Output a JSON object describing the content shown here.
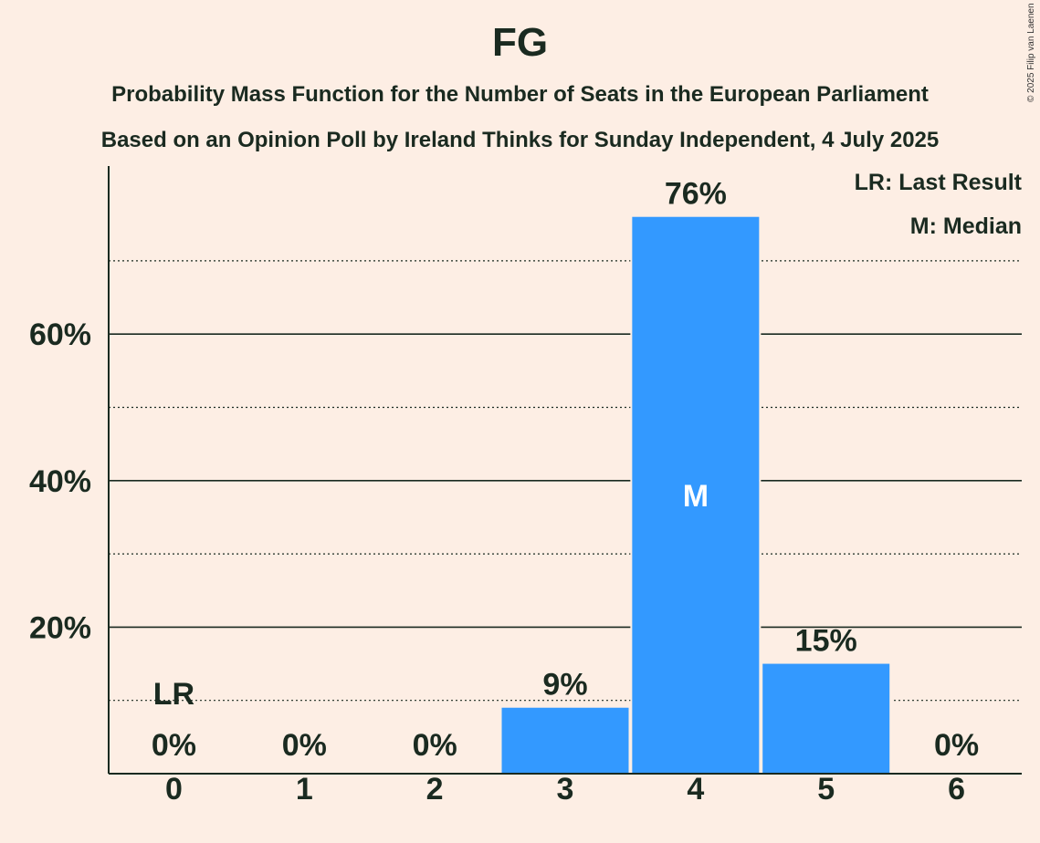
{
  "header": {
    "title": "FG",
    "subtitle1": "Probability Mass Function for the Number of Seats in the European Parliament",
    "subtitle2": "Based on an Opinion Poll by Ireland Thinks for Sunday Independent, 4 July 2025",
    "copyright": "© 2025 Filip van Laenen"
  },
  "legend": {
    "last_result": "LR: Last Result",
    "median": "M: Median"
  },
  "chart_data": {
    "type": "bar",
    "title": "FG",
    "categories": [
      "0",
      "1",
      "2",
      "3",
      "4",
      "5",
      "6"
    ],
    "values": [
      0,
      0,
      0,
      9,
      76,
      15,
      0
    ],
    "value_labels": [
      "0%",
      "0%",
      "0%",
      "9%",
      "76%",
      "15%",
      "0%"
    ],
    "ylim": [
      0,
      83
    ],
    "yticks": [
      20,
      40,
      60
    ],
    "ytick_labels": [
      "20%",
      "40%",
      "60%"
    ],
    "minor_gridlines": [
      10,
      30,
      50,
      70
    ],
    "bar_color": "#3399ff",
    "last_result": {
      "category": "0",
      "label": "LR"
    },
    "median": {
      "category": "4",
      "label": "M"
    },
    "legend_position": "top-right"
  }
}
